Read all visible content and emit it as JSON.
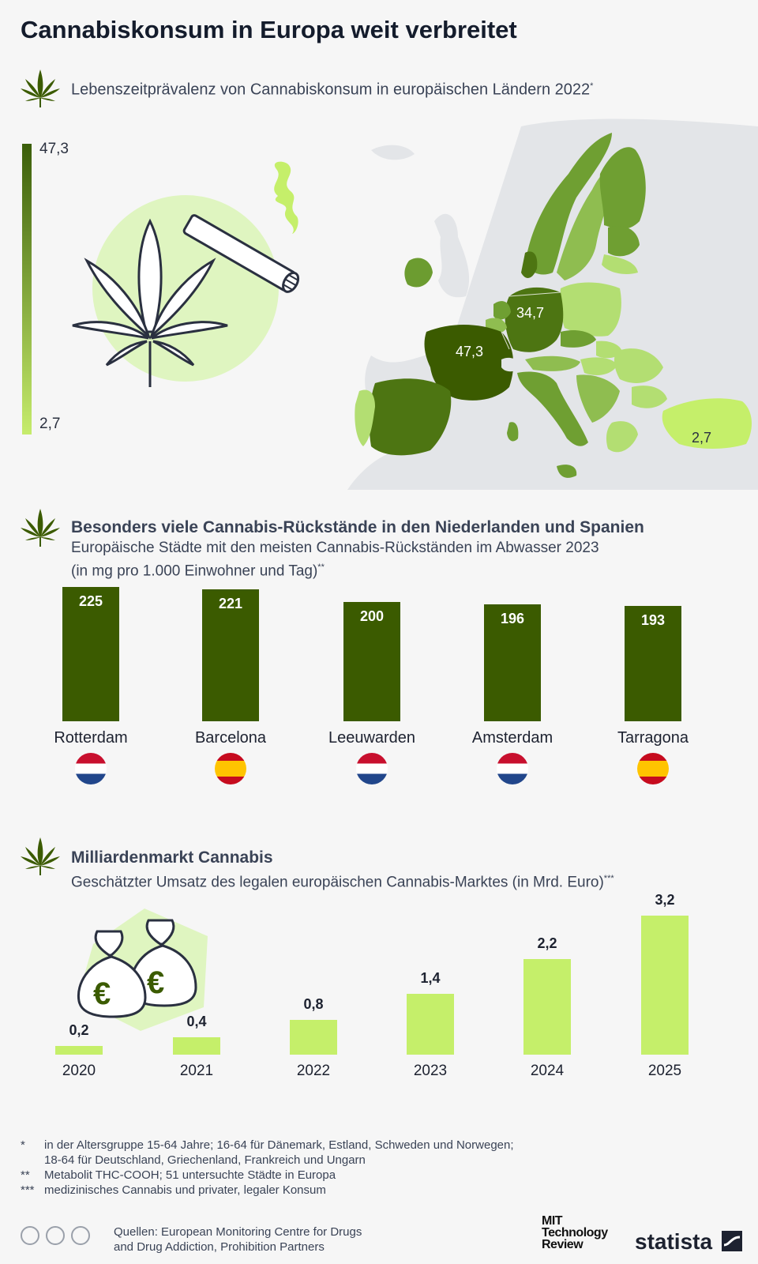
{
  "title": "Cannabiskonsum in Europa weit verbreitet",
  "section1": {
    "subtitle": "Lebenszeitprävalenz von Cannabiskonsum in europäischen Ländern 2022",
    "subtitle_mark": "*",
    "legend_max": "47,3",
    "legend_min": "2,7",
    "map_labels": {
      "france": "47,3",
      "germany": "34,7",
      "turkey": "2,7"
    }
  },
  "section2": {
    "title": "Besonders viele Cannabis-Rückstände in den Niederlanden und Spanien",
    "subtitle_line1": "Europäische Städte mit den meisten Cannabis-Rückständen im Abwasser 2023",
    "subtitle_line2": "(in mg pro 1.000 Einwohner und Tag)",
    "subtitle_mark": "**"
  },
  "section3": {
    "title": "Milliardenmarkt Cannabis",
    "subtitle": "Geschätzter Umsatz des legalen europäischen Cannabis-Marktes (in Mrd. Euro)",
    "subtitle_mark": "***"
  },
  "chart_data": [
    {
      "type": "bar",
      "categories": [
        "Rotterdam",
        "Barcelona",
        "Leeuwarden",
        "Amsterdam",
        "Tarragona"
      ],
      "values": [
        225,
        221,
        200,
        196,
        193
      ],
      "value_labels": [
        "225",
        "221",
        "200",
        "196",
        "193"
      ],
      "flags": [
        "netherlands",
        "spain",
        "netherlands",
        "netherlands",
        "spain"
      ],
      "color": "#3b5b00",
      "ylim": [
        0,
        225
      ]
    },
    {
      "type": "bar",
      "categories": [
        "2020",
        "2021",
        "2022",
        "2023",
        "2024",
        "2025"
      ],
      "values": [
        0.2,
        0.4,
        0.8,
        1.4,
        2.2,
        3.2
      ],
      "value_labels": [
        "0,2",
        "0,4",
        "0,8",
        "1,4",
        "2,2",
        "3,2"
      ],
      "color": "#c5ef6a",
      "ylim": [
        0,
        3.2
      ]
    }
  ],
  "footnotes": {
    "f1_mark": "*",
    "f1_line1": "in der Altersgruppe 15-64 Jahre; 16-64 für Dänemark, Estland, Schweden und Norwegen;",
    "f1_line2": "18-64 für Deutschland, Griechenland, Frankreich und Ungarn",
    "f2_mark": "**",
    "f2": "Metabolit THC-COOH; 51 untersuchte Städte in Europa",
    "f3_mark": "***",
    "f3": "medizinisches Cannabis und privater, legaler Konsum"
  },
  "sources": {
    "line1": "Quellen: European Monitoring Centre for Drugs",
    "line2": "and Drug Addiction, Prohibition Partners"
  },
  "logos": {
    "mit_line1": "MIT",
    "mit_line2": "Technology",
    "mit_line3": "Review",
    "statista": "statista"
  },
  "colors": {
    "dark_green": "#3b5b00",
    "light_green": "#c5ef6a",
    "legend_top": "#3b5e0a",
    "legend_bottom": "#c6ec6c"
  }
}
